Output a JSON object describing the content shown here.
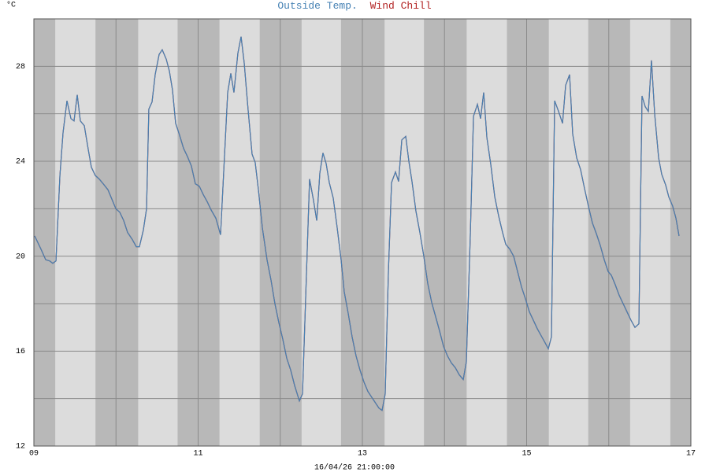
{
  "chart_data": {
    "type": "line",
    "title": "Outside Temp.",
    "y_label": "°C",
    "x_label": "16/04/26 21:00:00",
    "xlim": [
      9,
      17
    ],
    "ylim": [
      12,
      30
    ],
    "xticks": [
      {
        "value": 9,
        "label": "09"
      },
      11,
      13,
      15,
      17
    ],
    "x_minor_ticks": [
      10,
      12,
      14,
      16
    ],
    "yticks": [
      12,
      16,
      20,
      24,
      28
    ],
    "y_minor_ticks": [
      14,
      18,
      22,
      26,
      30
    ],
    "grid": true,
    "daylight": [
      [
        9.26,
        9.75
      ],
      [
        10.27,
        10.75
      ],
      [
        11.26,
        11.75
      ],
      [
        12.26,
        12.74
      ],
      [
        13.27,
        13.75
      ],
      [
        14.27,
        14.76
      ],
      [
        15.27,
        15.75
      ],
      [
        16.26,
        16.75
      ]
    ],
    "x": [
      9.01,
      9.086,
      9.144,
      9.192,
      9.23,
      9.269,
      9.317,
      9.355,
      9.403,
      9.451,
      9.489,
      9.528,
      9.566,
      9.614,
      9.662,
      9.7,
      9.748,
      9.796,
      9.844,
      9.902,
      9.95,
      9.998,
      10.046,
      10.094,
      10.141,
      10.199,
      10.247,
      10.285,
      10.333,
      10.372,
      10.4,
      10.439,
      10.477,
      10.525,
      10.563,
      10.612,
      10.65,
      10.688,
      10.726,
      10.774,
      10.822,
      10.87,
      10.918,
      10.966,
      11.014,
      11.062,
      11.11,
      11.158,
      11.216,
      11.273,
      11.36,
      11.398,
      11.436,
      11.484,
      11.523,
      11.561,
      11.609,
      11.657,
      11.695,
      11.734,
      11.782,
      11.839,
      11.887,
      11.935,
      11.983,
      12.031,
      12.079,
      12.127,
      12.175,
      12.233,
      12.271,
      12.357,
      12.405,
      12.444,
      12.482,
      12.52,
      12.559,
      12.597,
      12.645,
      12.693,
      12.741,
      12.779,
      12.827,
      12.875,
      12.923,
      12.971,
      13.019,
      13.067,
      13.115,
      13.163,
      13.201,
      13.24,
      13.278,
      13.317,
      13.355,
      13.403,
      13.441,
      13.48,
      13.528,
      13.566,
      13.604,
      13.652,
      13.7,
      13.748,
      13.796,
      13.844,
      13.892,
      13.94,
      13.988,
      14.036,
      14.084,
      14.132,
      14.18,
      14.228,
      14.266,
      14.314,
      14.353,
      14.401,
      14.439,
      14.477,
      14.516,
      14.564,
      14.612,
      14.659,
      14.707,
      14.746,
      14.794,
      14.842,
      14.89,
      14.938,
      14.986,
      15.034,
      15.082,
      15.129,
      15.177,
      15.225,
      15.264,
      15.302,
      15.341,
      15.389,
      15.437,
      15.475,
      15.523,
      15.561,
      15.609,
      15.657,
      15.705,
      15.753,
      15.801,
      15.849,
      15.897,
      15.945,
      15.993,
      16.031,
      16.079,
      16.127,
      16.175,
      16.223,
      16.271,
      16.319,
      16.367,
      16.405,
      16.444,
      16.482,
      16.52,
      16.559,
      16.607,
      16.645,
      16.693,
      16.731,
      16.779,
      16.818,
      16.856
    ],
    "series": [
      {
        "name": "Wind Chill",
        "color": "#b22222",
        "values": [
          20.85,
          20.3,
          19.85,
          19.8,
          19.7,
          19.8,
          23.4,
          25.2,
          26.55,
          25.8,
          25.7,
          26.8,
          25.7,
          25.5,
          24.5,
          23.75,
          23.4,
          23.25,
          23.05,
          22.8,
          22.4,
          22.0,
          21.85,
          21.5,
          21.0,
          20.7,
          20.4,
          20.4,
          21.1,
          22.0,
          26.2,
          26.5,
          27.65,
          28.5,
          28.7,
          28.3,
          27.8,
          27.0,
          25.6,
          25.1,
          24.55,
          24.2,
          23.8,
          23.05,
          22.95,
          22.6,
          22.3,
          21.95,
          21.6,
          20.9,
          26.9,
          27.7,
          26.9,
          28.55,
          29.25,
          28.15,
          26.15,
          24.3,
          23.95,
          22.8,
          21.2,
          19.85,
          19.0,
          18.0,
          17.2,
          16.5,
          15.7,
          15.2,
          14.55,
          13.9,
          14.2,
          23.25,
          22.35,
          21.5,
          23.5,
          24.35,
          23.9,
          23.1,
          22.45,
          21.2,
          19.85,
          18.5,
          17.6,
          16.6,
          15.8,
          15.2,
          14.7,
          14.3,
          14.05,
          13.8,
          13.6,
          13.5,
          14.2,
          19.35,
          23.1,
          23.55,
          23.15,
          24.9,
          25.05,
          24.0,
          23.15,
          21.9,
          21.0,
          20.0,
          18.85,
          18.05,
          17.45,
          16.85,
          16.2,
          15.8,
          15.5,
          15.3,
          15.0,
          14.8,
          15.55,
          20.85,
          25.9,
          26.4,
          25.8,
          26.9,
          25.0,
          23.85,
          22.5,
          21.7,
          21.0,
          20.5,
          20.3,
          20.0,
          19.35,
          18.7,
          18.2,
          17.65,
          17.3,
          16.95,
          16.65,
          16.35,
          16.1,
          16.6,
          26.55,
          26.1,
          25.6,
          27.2,
          27.65,
          25.15,
          24.15,
          23.65,
          22.85,
          22.1,
          21.4,
          20.95,
          20.45,
          19.85,
          19.35,
          19.2,
          18.8,
          18.35,
          18.0,
          17.65,
          17.3,
          17.0,
          17.15,
          26.75,
          26.3,
          26.1,
          28.25,
          26.0,
          24.15,
          23.45,
          23.0,
          22.5,
          22.1,
          21.6,
          20.85
        ]
      },
      {
        "name": "Outside Temp.",
        "color": "#4682b4",
        "values": [
          20.85,
          20.3,
          19.85,
          19.8,
          19.7,
          19.8,
          23.4,
          25.2,
          26.55,
          25.8,
          25.7,
          26.8,
          25.7,
          25.5,
          24.5,
          23.75,
          23.4,
          23.25,
          23.05,
          22.8,
          22.4,
          22.0,
          21.85,
          21.5,
          21.0,
          20.7,
          20.4,
          20.4,
          21.1,
          22.0,
          26.2,
          26.5,
          27.65,
          28.5,
          28.7,
          28.3,
          27.8,
          27.0,
          25.6,
          25.1,
          24.55,
          24.2,
          23.8,
          23.05,
          22.95,
          22.6,
          22.3,
          21.95,
          21.6,
          20.9,
          26.9,
          27.7,
          26.9,
          28.55,
          29.25,
          28.15,
          26.15,
          24.3,
          23.95,
          22.8,
          21.2,
          19.85,
          19.0,
          18.0,
          17.2,
          16.5,
          15.7,
          15.2,
          14.55,
          13.9,
          14.2,
          23.25,
          22.35,
          21.5,
          23.5,
          24.35,
          23.9,
          23.1,
          22.45,
          21.2,
          19.85,
          18.5,
          17.6,
          16.6,
          15.8,
          15.2,
          14.7,
          14.3,
          14.05,
          13.8,
          13.6,
          13.5,
          14.2,
          19.35,
          23.1,
          23.55,
          23.15,
          24.9,
          25.05,
          24.0,
          23.15,
          21.9,
          21.0,
          20.0,
          18.85,
          18.05,
          17.45,
          16.85,
          16.2,
          15.8,
          15.5,
          15.3,
          15.0,
          14.8,
          15.55,
          20.85,
          25.9,
          26.4,
          25.8,
          26.9,
          25.0,
          23.85,
          22.5,
          21.7,
          21.0,
          20.5,
          20.3,
          20.0,
          19.35,
          18.7,
          18.2,
          17.65,
          17.3,
          16.95,
          16.65,
          16.35,
          16.1,
          16.6,
          26.55,
          26.1,
          25.6,
          27.2,
          27.65,
          25.15,
          24.15,
          23.65,
          22.85,
          22.1,
          21.4,
          20.95,
          20.45,
          19.85,
          19.35,
          19.2,
          18.8,
          18.35,
          18.0,
          17.65,
          17.3,
          17.0,
          17.15,
          26.75,
          26.3,
          26.1,
          28.25,
          26.0,
          24.15,
          23.45,
          23.0,
          22.5,
          22.1,
          21.6,
          20.85
        ]
      }
    ]
  }
}
